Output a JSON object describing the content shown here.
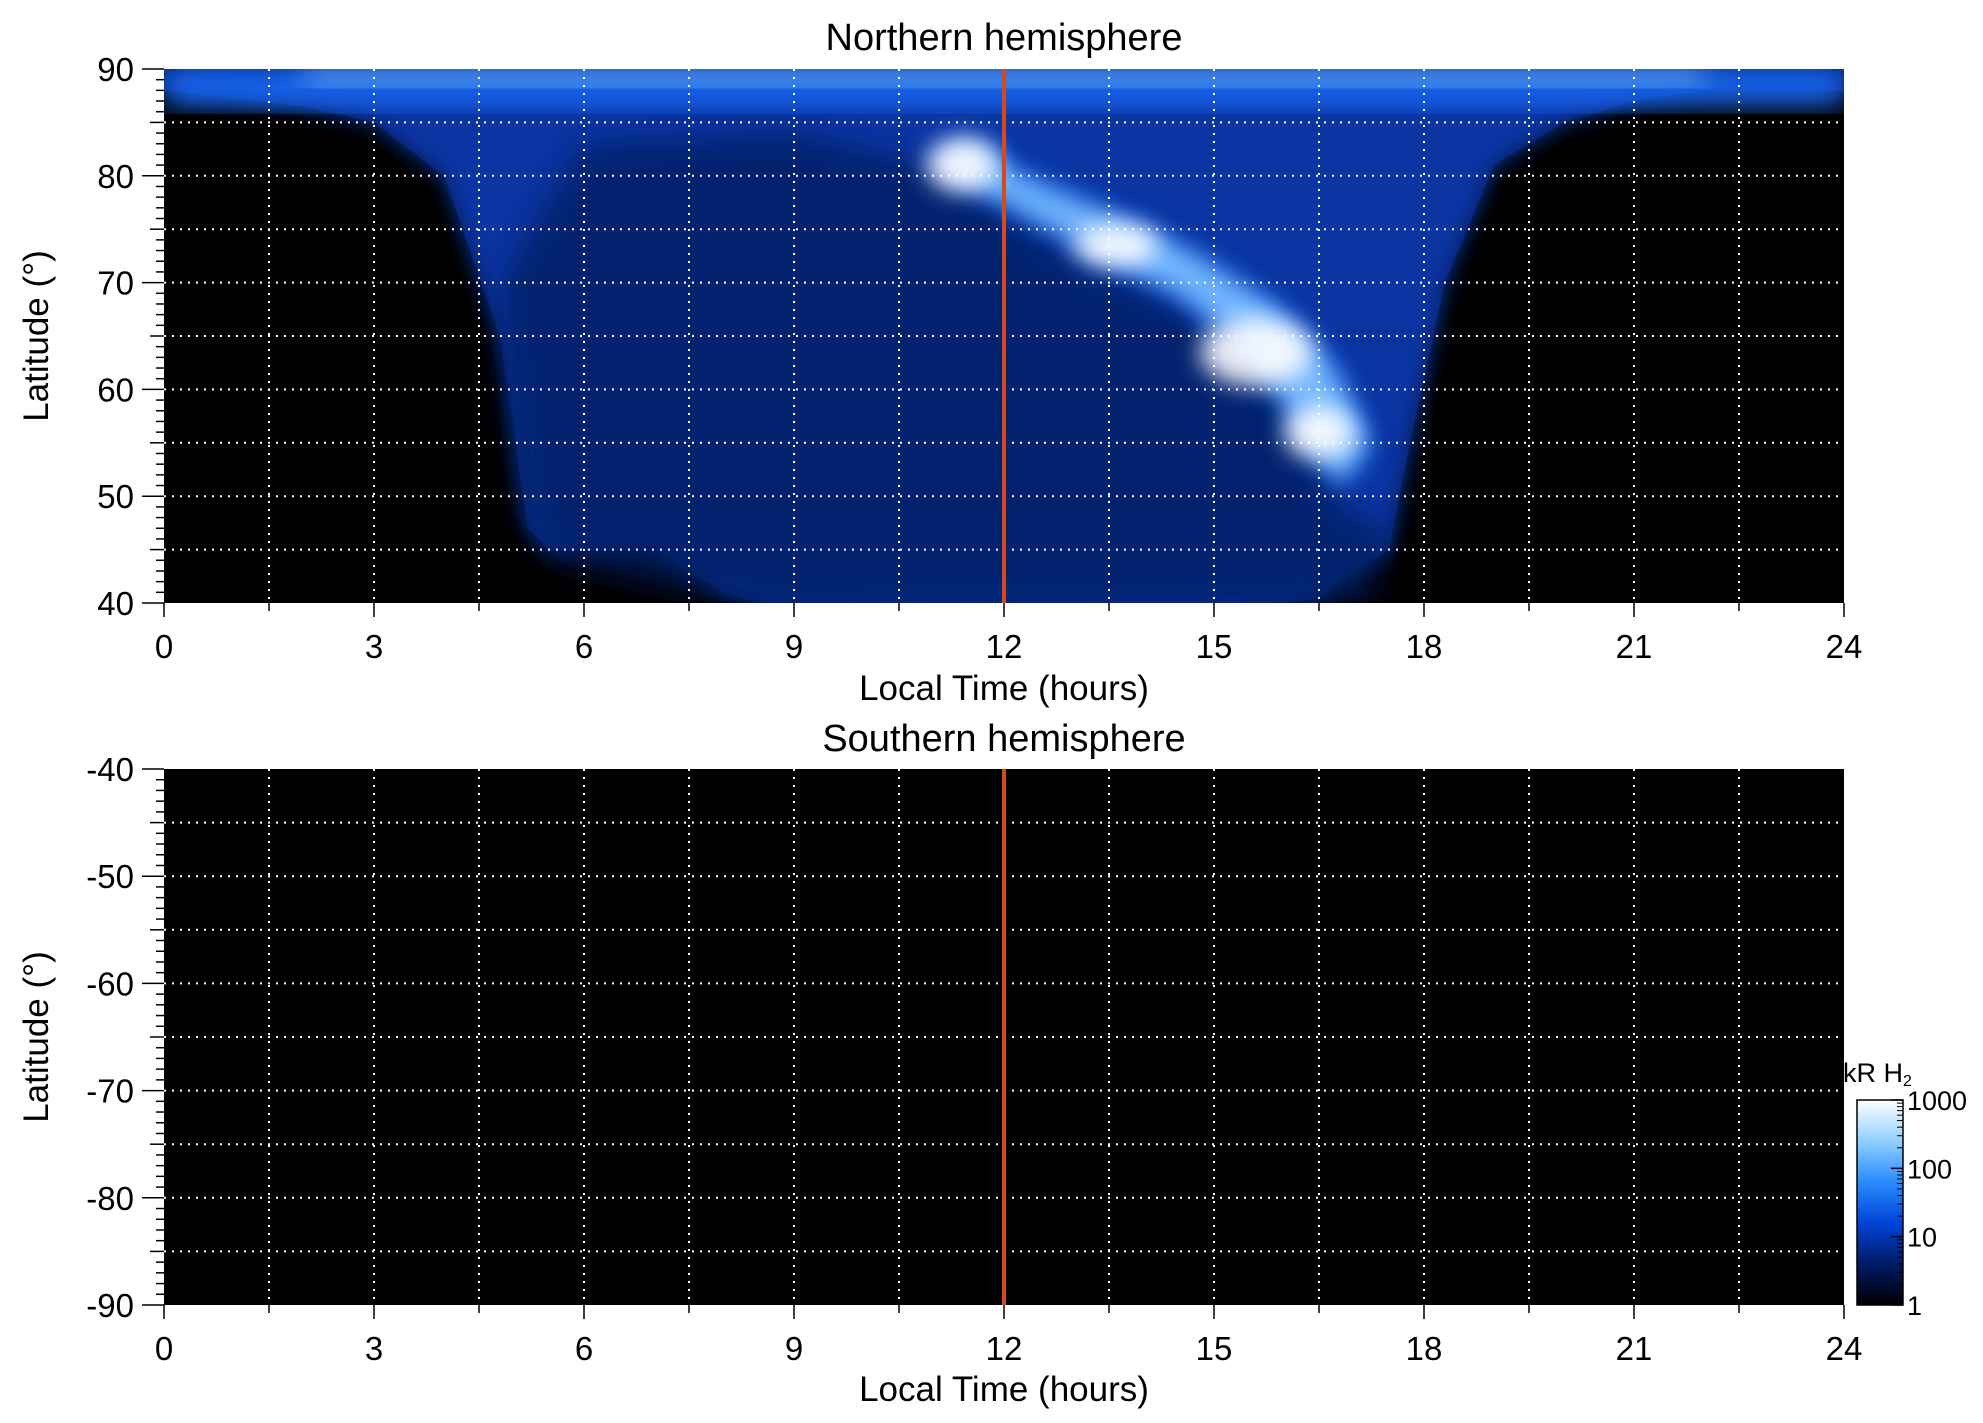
{
  "colors": {
    "background": "#000000",
    "noon_line": "#d24a1f",
    "grid": "#ffffff",
    "aurora_dim": "#0a2a8c",
    "aurora_mid": "#1f6fff",
    "aurora_bright": "#8fd0ff"
  },
  "chart_data": [
    {
      "type": "heatmap",
      "title": "Northern hemisphere",
      "xlabel": "Local Time (hours)",
      "ylabel": "Latitude (°)",
      "xlim": [
        0,
        24
      ],
      "ylim": [
        40,
        90
      ],
      "xticks": [
        0,
        3,
        6,
        9,
        12,
        15,
        18,
        21,
        24
      ],
      "xtick_labels": [
        "0",
        "3",
        "6",
        "9",
        "12",
        "15",
        "18",
        "21",
        "24"
      ],
      "yticks": [
        40,
        50,
        60,
        70,
        80,
        90
      ],
      "ytick_labels": [
        "40",
        "50",
        "60",
        "70",
        "80",
        "90"
      ],
      "grid": true,
      "vline": {
        "x": 12
      },
      "emission": {
        "outer_boundary": [
          [
            0,
            88
          ],
          [
            2,
            86.5
          ],
          [
            3,
            85
          ],
          [
            4,
            80
          ],
          [
            4.8,
            65
          ],
          [
            5.2,
            47
          ],
          [
            5.5,
            45
          ],
          [
            7,
            45
          ],
          [
            8,
            41
          ],
          [
            9,
            39
          ],
          [
            12,
            39
          ],
          [
            15,
            39
          ],
          [
            16.5,
            40.5
          ],
          [
            17,
            43
          ],
          [
            17.5,
            45
          ],
          [
            17.8,
            55
          ],
          [
            18.3,
            70
          ],
          [
            19,
            81
          ],
          [
            20,
            85
          ],
          [
            21,
            87
          ],
          [
            22,
            88
          ],
          [
            24,
            88
          ],
          [
            24,
            90
          ],
          [
            0,
            90
          ]
        ],
        "dim_region": [
          [
            4.8,
            70
          ],
          [
            6,
            83
          ],
          [
            9,
            84
          ],
          [
            11,
            81
          ],
          [
            12,
            77
          ],
          [
            13,
            72
          ],
          [
            14.5,
            68
          ],
          [
            16,
            60
          ],
          [
            16.8,
            49
          ],
          [
            17.5,
            47
          ],
          [
            17.2,
            40
          ],
          [
            9,
            39
          ],
          [
            5.5,
            44
          ],
          [
            5.1,
            50
          ]
        ],
        "oval": [
          [
            11,
            81.5
          ],
          [
            12,
            77.5
          ],
          [
            13.3,
            73
          ],
          [
            14.5,
            69
          ],
          [
            15.5,
            64
          ],
          [
            16.2,
            57
          ],
          [
            16.8,
            51
          ],
          [
            17.2,
            55
          ],
          [
            16.7,
            62
          ],
          [
            15.8,
            68
          ],
          [
            14.6,
            73
          ],
          [
            13.3,
            77
          ],
          [
            12.2,
            80
          ],
          [
            11.6,
            83
          ]
        ],
        "bright_spots": [
          {
            "x": 11.4,
            "y": 81,
            "rx": 0.5,
            "ry": 2.5
          },
          {
            "x": 13.6,
            "y": 73.5,
            "rx": 0.6,
            "ry": 2
          },
          {
            "x": 15.6,
            "y": 63.5,
            "rx": 0.8,
            "ry": 3.2
          },
          {
            "x": 16.5,
            "y": 56,
            "rx": 0.5,
            "ry": 2.5
          }
        ]
      }
    },
    {
      "type": "heatmap",
      "title": "Southern hemisphere",
      "xlabel": "Local Time (hours)",
      "ylabel": "Latitude (°)",
      "xlim": [
        0,
        24
      ],
      "ylim": [
        -90,
        -40
      ],
      "xticks": [
        0,
        3,
        6,
        9,
        12,
        15,
        18,
        21,
        24
      ],
      "xtick_labels": [
        "0",
        "3",
        "6",
        "9",
        "12",
        "15",
        "18",
        "21",
        "24"
      ],
      "yticks": [
        -40,
        -50,
        -60,
        -70,
        -80,
        -90
      ],
      "ytick_labels": [
        "-40",
        "-50",
        "-60",
        "-70",
        "-80",
        "-90"
      ],
      "grid": true,
      "vline": {
        "x": 12
      }
    }
  ],
  "colorbar": {
    "label": "kR H",
    "label_sub": "2",
    "scale": "log",
    "range": [
      1,
      1000
    ],
    "ticks": [
      1,
      10,
      100,
      1000
    ],
    "tick_labels": [
      "1",
      "10",
      "100",
      "1000"
    ],
    "colors": [
      "#000000",
      "#001a66",
      "#0044d8",
      "#2a8bff",
      "#8fd0ff",
      "#ffffff"
    ]
  }
}
